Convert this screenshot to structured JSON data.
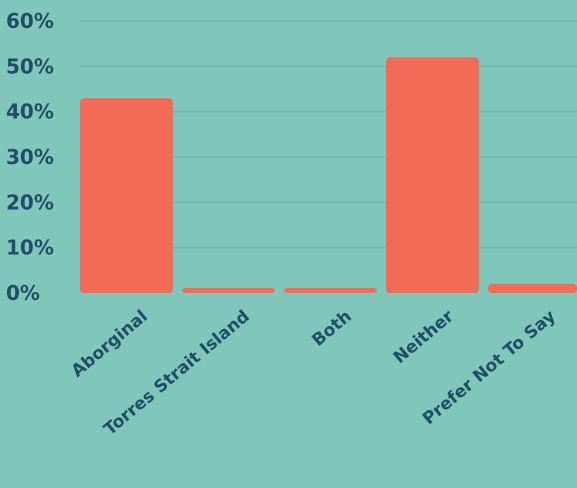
{
  "chart_data": {
    "type": "bar",
    "categories": [
      "Aborginal",
      "Torres Strait Island",
      "Both",
      "Neither",
      "Prefer Not To Say"
    ],
    "values": [
      43,
      1,
      1,
      52,
      2
    ],
    "ylim": [
      0,
      60
    ],
    "yticks": [
      0,
      10,
      20,
      30,
      40,
      50,
      60
    ],
    "ytick_labels": [
      "0%",
      "10%",
      "20%",
      "30%",
      "40%",
      "50%",
      "60%"
    ],
    "grid": true,
    "colors": {
      "background": "#80c6bb",
      "bar": "#f26b57",
      "text": "#1f4f66",
      "grid": "#72b7ad"
    }
  }
}
